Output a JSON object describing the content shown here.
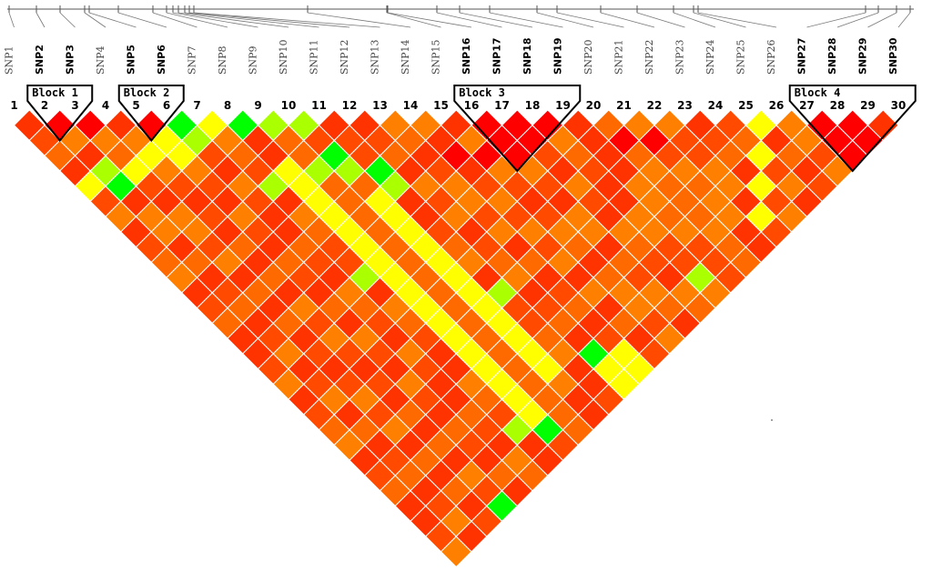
{
  "snps": [
    {
      "name": "SNP1",
      "index": "1",
      "bold": false
    },
    {
      "name": "SNP2",
      "index": "2",
      "bold": true
    },
    {
      "name": "SNP3",
      "index": "3",
      "bold": true
    },
    {
      "name": "SNP4",
      "index": "4",
      "bold": false
    },
    {
      "name": "SNP5",
      "index": "5",
      "bold": true
    },
    {
      "name": "SNP6",
      "index": "6",
      "bold": true
    },
    {
      "name": "SNP7",
      "index": "7",
      "bold": false
    },
    {
      "name": "SNP8",
      "index": "8",
      "bold": false
    },
    {
      "name": "SNP9",
      "index": "9",
      "bold": false
    },
    {
      "name": "SNP10",
      "index": "10",
      "bold": false
    },
    {
      "name": "SNP11",
      "index": "11",
      "bold": false
    },
    {
      "name": "SNP12",
      "index": "12",
      "bold": false
    },
    {
      "name": "SNP13",
      "index": "13",
      "bold": false
    },
    {
      "name": "SNP14",
      "index": "14",
      "bold": false
    },
    {
      "name": "SNP15",
      "index": "15",
      "bold": false
    },
    {
      "name": "SNP16",
      "index": "16",
      "bold": true
    },
    {
      "name": "SNP17",
      "index": "17",
      "bold": true
    },
    {
      "name": "SNP18",
      "index": "18",
      "bold": true
    },
    {
      "name": "SNP19",
      "index": "19",
      "bold": true
    },
    {
      "name": "SNP20",
      "index": "20",
      "bold": false
    },
    {
      "name": "SNP21",
      "index": "21",
      "bold": false
    },
    {
      "name": "SNP22",
      "index": "22",
      "bold": false
    },
    {
      "name": "SNP23",
      "index": "23",
      "bold": false
    },
    {
      "name": "SNP24",
      "index": "24",
      "bold": false
    },
    {
      "name": "SNP25",
      "index": "25",
      "bold": false
    },
    {
      "name": "SNP26",
      "index": "26",
      "bold": false
    },
    {
      "name": "SNP27",
      "index": "27",
      "bold": true
    },
    {
      "name": "SNP28",
      "index": "28",
      "bold": true
    },
    {
      "name": "SNP29",
      "index": "29",
      "bold": true
    },
    {
      "name": "SNP30",
      "index": "30",
      "bold": true
    }
  ],
  "blocks": [
    {
      "label": "Block 1",
      "start": 2,
      "end": 3
    },
    {
      "label": "Block 2",
      "start": 5,
      "end": 6
    },
    {
      "label": "Block 3",
      "start": 16,
      "end": 19
    },
    {
      "label": "Block 4",
      "start": 27,
      "end": 30
    }
  ],
  "colors": {
    "strong": "#ff0000",
    "high": "#ff3300",
    "medium": "#ff7f00",
    "moderate": "#ffbf00",
    "low": "#ffff00",
    "weak": "#aaff00",
    "none": "#00ff00",
    "cell_border": "#ffffff",
    "block_outline": "#000000"
  },
  "ld_special_cells": {
    "green": [
      [
        6,
        7
      ],
      [
        8,
        9
      ],
      [
        10,
        13
      ],
      [
        11,
        15
      ],
      [
        2,
        7
      ],
      [
        8,
        29
      ],
      [
        12,
        28
      ],
      [
        4,
        30
      ]
    ],
    "yellow_green": [
      [
        9,
        10
      ],
      [
        10,
        11
      ],
      [
        2,
        6
      ],
      [
        6,
        8
      ],
      [
        9,
        13
      ],
      [
        10,
        14
      ],
      [
        11,
        16
      ],
      [
        7,
        18
      ],
      [
        11,
        23
      ],
      [
        7,
        28
      ],
      [
        18,
        29
      ],
      [
        7,
        12
      ]
    ],
    "yellow": [
      [
        6,
        8
      ],
      [
        7,
        8
      ],
      [
        5,
        8
      ],
      [
        4,
        7
      ],
      [
        3,
        7
      ],
      [
        5,
        7
      ],
      [
        1,
        6
      ],
      [
        8,
        12
      ],
      [
        8,
        13
      ],
      [
        8,
        14
      ],
      [
        8,
        15
      ],
      [
        8,
        16
      ],
      [
        8,
        17
      ],
      [
        8,
        18
      ],
      [
        8,
        19
      ],
      [
        8,
        20
      ],
      [
        8,
        21
      ],
      [
        8,
        22
      ],
      [
        8,
        23
      ],
      [
        8,
        24
      ],
      [
        8,
        25
      ],
      [
        8,
        26
      ],
      [
        8,
        27
      ],
      [
        8,
        28
      ],
      [
        12,
        29
      ],
      [
        12,
        30
      ],
      [
        10,
        16
      ],
      [
        10,
        17
      ],
      [
        10,
        18
      ],
      [
        10,
        19
      ],
      [
        10,
        20
      ],
      [
        10,
        21
      ],
      [
        10,
        22
      ],
      [
        10,
        23
      ],
      [
        10,
        24
      ],
      [
        10,
        25
      ],
      [
        10,
        26
      ],
      [
        10,
        27
      ],
      [
        13,
        29
      ],
      [
        13,
        30
      ],
      [
        25,
        26
      ],
      [
        24,
        27
      ],
      [
        23,
        28
      ],
      [
        22,
        29
      ]
    ],
    "orange": [
      [
        13,
        14
      ],
      [
        14,
        15
      ],
      [
        21,
        22
      ],
      [
        22,
        23
      ],
      [
        25,
        26
      ],
      [
        26,
        27
      ],
      [
        12,
        17
      ],
      [
        13,
        19
      ],
      [
        14,
        20
      ],
      [
        3,
        5
      ],
      [
        2,
        4
      ],
      [
        4,
        6
      ],
      [
        12,
        19
      ],
      [
        14,
        22
      ],
      [
        15,
        23
      ],
      [
        16,
        24
      ],
      [
        17,
        25
      ],
      [
        18,
        26
      ],
      [
        19,
        27
      ],
      [
        20,
        28
      ],
      [
        20,
        24
      ],
      [
        21,
        25
      ],
      [
        22,
        26
      ],
      [
        2,
        9
      ],
      [
        3,
        10
      ],
      [
        16,
        28
      ],
      [
        15,
        27
      ],
      [
        14,
        26
      ],
      [
        18,
        30
      ]
    ],
    "dark_red": [
      [
        2,
        3
      ],
      [
        16,
        17
      ],
      [
        17,
        18
      ],
      [
        18,
        19
      ],
      [
        27,
        28
      ],
      [
        28,
        29
      ],
      [
        16,
        18
      ],
      [
        17,
        19
      ],
      [
        16,
        19
      ],
      [
        27,
        29
      ],
      [
        28,
        30
      ],
      [
        27,
        30
      ],
      [
        5,
        6
      ],
      [
        3,
        4
      ],
      [
        14,
        17
      ],
      [
        15,
        18
      ],
      [
        20,
        22
      ],
      [
        21,
        23
      ]
    ]
  }
}
